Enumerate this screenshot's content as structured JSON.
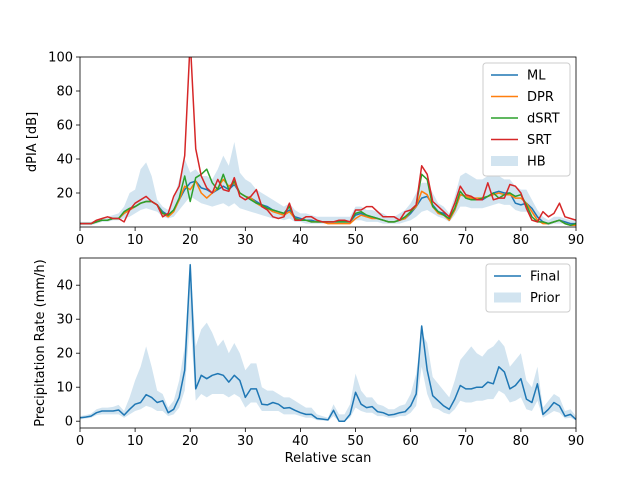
{
  "chart_data": [
    {
      "type": "line",
      "ylabel": "dPIA [dB]",
      "xlabel": "",
      "xlim": [
        0,
        90
      ],
      "ylim": [
        0,
        100
      ],
      "xticks": [
        "0",
        "10",
        "20",
        "30",
        "40",
        "50",
        "60",
        "70",
        "80",
        "90"
      ],
      "yticks": [
        "20",
        "40",
        "60",
        "80",
        "100"
      ],
      "legend_position": "top-right",
      "x": [
        0,
        1,
        2,
        3,
        4,
        5,
        6,
        7,
        8,
        9,
        10,
        11,
        12,
        13,
        14,
        15,
        16,
        17,
        18,
        19,
        20,
        21,
        22,
        23,
        24,
        25,
        26,
        27,
        28,
        29,
        30,
        31,
        32,
        33,
        34,
        35,
        36,
        37,
        38,
        39,
        40,
        41,
        42,
        43,
        44,
        45,
        46,
        47,
        48,
        49,
        50,
        51,
        52,
        53,
        54,
        55,
        56,
        57,
        58,
        59,
        60,
        61,
        62,
        63,
        64,
        65,
        66,
        67,
        68,
        69,
        70,
        71,
        72,
        73,
        74,
        75,
        76,
        77,
        78,
        79,
        80,
        81,
        82,
        83,
        84,
        85,
        86,
        87,
        88,
        89,
        90
      ],
      "series": [
        {
          "name": "ML",
          "color": "#1f77b4",
          "values": [
            2,
            2,
            2,
            3,
            4,
            4,
            5,
            5,
            8,
            10,
            12,
            14,
            15,
            15,
            13,
            9,
            7,
            10,
            16,
            22,
            26,
            27,
            23,
            22,
            20,
            22,
            24,
            22,
            25,
            20,
            18,
            17,
            15,
            13,
            12,
            10,
            9,
            8,
            10,
            6,
            5,
            4,
            4,
            3,
            3,
            3,
            3,
            3,
            3,
            3,
            7,
            8,
            6,
            6,
            5,
            4,
            3,
            3,
            4,
            5,
            8,
            12,
            17,
            18,
            13,
            9,
            8,
            4,
            10,
            19,
            18,
            17,
            16,
            16,
            18,
            20,
            21,
            20,
            20,
            14,
            13,
            14,
            11,
            6,
            3,
            2,
            3,
            4,
            3,
            2,
            2
          ]
        },
        {
          "name": "DPR",
          "color": "#ff7f0e",
          "values": [
            2,
            2,
            2,
            3,
            4,
            4,
            5,
            5,
            8,
            10,
            12,
            14,
            15,
            15,
            13,
            8,
            6,
            9,
            16,
            24,
            22,
            27,
            20,
            17,
            20,
            23,
            28,
            24,
            26,
            20,
            18,
            17,
            14,
            12,
            11,
            9,
            8,
            7,
            9,
            5,
            4,
            4,
            3,
            3,
            3,
            2,
            2,
            2,
            2,
            2,
            5,
            7,
            6,
            5,
            5,
            4,
            3,
            3,
            4,
            5,
            9,
            12,
            21,
            19,
            12,
            8,
            7,
            4,
            10,
            19,
            18,
            17,
            17,
            17,
            18,
            19,
            20,
            19,
            19,
            17,
            17,
            14,
            9,
            4,
            2,
            2,
            3,
            4,
            2,
            1,
            1
          ]
        },
        {
          "name": "dSRT",
          "color": "#2ca02c",
          "values": [
            2,
            2,
            2,
            3,
            4,
            4,
            5,
            5,
            9,
            11,
            12,
            14,
            15,
            15,
            13,
            8,
            7,
            10,
            17,
            30,
            15,
            29,
            31,
            34,
            26,
            22,
            31,
            22,
            27,
            20,
            18,
            16,
            14,
            13,
            11,
            10,
            9,
            8,
            12,
            5,
            4,
            4,
            3,
            3,
            3,
            3,
            3,
            3,
            3,
            3,
            8,
            9,
            7,
            6,
            5,
            4,
            3,
            3,
            4,
            6,
            9,
            13,
            31,
            28,
            12,
            9,
            7,
            5,
            11,
            21,
            17,
            16,
            16,
            17,
            18,
            20,
            17,
            19,
            20,
            18,
            19,
            13,
            6,
            3,
            3,
            2,
            3,
            4,
            2,
            1,
            2
          ]
        },
        {
          "name": "SRT",
          "color": "#d62728",
          "values": [
            2,
            2,
            2,
            4,
            5,
            6,
            5,
            5,
            3,
            10,
            14,
            16,
            18,
            15,
            13,
            6,
            8,
            18,
            24,
            42,
            110,
            46,
            30,
            23,
            20,
            28,
            22,
            21,
            29,
            18,
            16,
            18,
            22,
            12,
            10,
            6,
            5,
            6,
            14,
            4,
            4,
            6,
            6,
            4,
            3,
            3,
            3,
            4,
            4,
            3,
            10,
            10,
            12,
            12,
            9,
            6,
            6,
            6,
            4,
            9,
            10,
            13,
            36,
            31,
            15,
            12,
            9,
            6,
            14,
            24,
            19,
            18,
            16,
            16,
            26,
            16,
            17,
            17,
            25,
            24,
            20,
            11,
            4,
            3,
            9,
            6,
            8,
            14,
            6,
            5,
            4
          ]
        }
      ],
      "bands": [
        {
          "name": "HB",
          "color": "#1f77b4",
          "opacity": 0.2,
          "lower": [
            1,
            1,
            1,
            2,
            3,
            3,
            4,
            4,
            5,
            6,
            8,
            10,
            11,
            10,
            9,
            6,
            5,
            6,
            10,
            14,
            18,
            16,
            14,
            13,
            12,
            13,
            14,
            12,
            14,
            11,
            10,
            9,
            8,
            7,
            6,
            5,
            5,
            4,
            5,
            3,
            3,
            2,
            2,
            2,
            2,
            2,
            2,
            2,
            2,
            2,
            4,
            4,
            3,
            3,
            3,
            2,
            2,
            2,
            2,
            3,
            4,
            6,
            9,
            10,
            8,
            6,
            5,
            3,
            7,
            12,
            12,
            11,
            11,
            11,
            12,
            13,
            14,
            13,
            13,
            10,
            9,
            9,
            7,
            4,
            2,
            1,
            2,
            2,
            2,
            1,
            1
          ],
          "upper": [
            3,
            3,
            3,
            4,
            5,
            6,
            7,
            8,
            12,
            20,
            22,
            34,
            38,
            30,
            16,
            12,
            10,
            16,
            28,
            40,
            32,
            34,
            30,
            30,
            28,
            34,
            42,
            36,
            50,
            32,
            28,
            26,
            22,
            20,
            18,
            16,
            14,
            12,
            14,
            10,
            8,
            8,
            7,
            6,
            6,
            6,
            6,
            6,
            6,
            6,
            12,
            12,
            10,
            10,
            9,
            8,
            6,
            6,
            8,
            10,
            14,
            20,
            26,
            26,
            20,
            14,
            12,
            8,
            18,
            30,
            32,
            30,
            28,
            28,
            30,
            30,
            30,
            28,
            28,
            24,
            22,
            22,
            16,
            10,
            6,
            4,
            6,
            6,
            5,
            4,
            4
          ]
        }
      ]
    },
    {
      "type": "line",
      "ylabel": "Precipitation Rate (mm/h)",
      "xlabel": "Relative scan",
      "xlim": [
        0,
        90
      ],
      "ylim": [
        -2,
        48
      ],
      "xticks": [
        "0",
        "10",
        "20",
        "30",
        "40",
        "50",
        "60",
        "70",
        "80",
        "90"
      ],
      "yticks": [
        "0",
        "10",
        "20",
        "30",
        "40"
      ],
      "legend_position": "top-right",
      "x": [
        0,
        1,
        2,
        3,
        4,
        5,
        6,
        7,
        8,
        9,
        10,
        11,
        12,
        13,
        14,
        15,
        16,
        17,
        18,
        19,
        20,
        21,
        22,
        23,
        24,
        25,
        26,
        27,
        28,
        29,
        30,
        31,
        32,
        33,
        34,
        35,
        36,
        37,
        38,
        39,
        40,
        41,
        42,
        43,
        44,
        45,
        46,
        47,
        48,
        49,
        50,
        51,
        52,
        53,
        54,
        55,
        56,
        57,
        58,
        59,
        60,
        61,
        62,
        63,
        64,
        65,
        66,
        67,
        68,
        69,
        70,
        71,
        72,
        73,
        74,
        75,
        76,
        77,
        78,
        79,
        80,
        81,
        82,
        83,
        84,
        85,
        86,
        87,
        88,
        89,
        90
      ],
      "series": [
        {
          "name": "Final",
          "color": "#1f77b4",
          "values": [
            1,
            1.2,
            1.5,
            2.5,
            3,
            3,
            3,
            3.3,
            1.8,
            3.5,
            5,
            5.5,
            7.8,
            7,
            5.5,
            6,
            2.5,
            3.5,
            7,
            15,
            46,
            9.5,
            13.5,
            12.5,
            13.5,
            14,
            13.5,
            11.5,
            13.5,
            12,
            7,
            9.5,
            9.5,
            5,
            4.8,
            5.5,
            5,
            3.8,
            4,
            3.2,
            2.5,
            2,
            2,
            0.8,
            0.6,
            0.4,
            3.2,
            0,
            0,
            2,
            8.5,
            5,
            4,
            4.3,
            2.8,
            2.5,
            1.8,
            2,
            2.5,
            2.8,
            4.5,
            8,
            28,
            15,
            7.5,
            6,
            4.5,
            3.5,
            6.5,
            10.5,
            9.5,
            9.5,
            10,
            10,
            11.5,
            11,
            16,
            14.5,
            9.5,
            10.5,
            12.5,
            6.5,
            5.5,
            11,
            2,
            3.5,
            5.5,
            4.5,
            1.5,
            2,
            0.5
          ]
        }
      ],
      "bands": [
        {
          "name": "Prior",
          "color": "#1f77b4",
          "opacity": 0.2,
          "lower": [
            0.5,
            0.8,
            1,
            1.8,
            2,
            2,
            2,
            2,
            1,
            2,
            3,
            3.5,
            4.5,
            4,
            3,
            3,
            1.5,
            2,
            4,
            9,
            30,
            6,
            8,
            7,
            8,
            8,
            8,
            7,
            8,
            7,
            4,
            5.5,
            5.5,
            3,
            3,
            3,
            3,
            2,
            2,
            2,
            1.5,
            1,
            1,
            0.3,
            0.2,
            0.1,
            1.5,
            0,
            0,
            1,
            4,
            3,
            2.5,
            2.5,
            1.5,
            1.5,
            1,
            1,
            1.5,
            1.5,
            2.5,
            4.5,
            16,
            8,
            4,
            3.5,
            2.5,
            2,
            3.5,
            6,
            5.5,
            5.5,
            6,
            6,
            6.5,
            6.5,
            9,
            8,
            5.5,
            6,
            7,
            3.5,
            3,
            6,
            1,
            2,
            3,
            2.5,
            0.8,
            1,
            0.2
          ],
          "upper": [
            1.5,
            1.8,
            2.2,
            3.5,
            4,
            4,
            4.2,
            4.8,
            3,
            7,
            12,
            16,
            22,
            16,
            9,
            8,
            4,
            6,
            12,
            22,
            47,
            22,
            27,
            29,
            26,
            22,
            24,
            20,
            23,
            20,
            15,
            17,
            17,
            10,
            9,
            9,
            8,
            7,
            7,
            6,
            5,
            4,
            4,
            2,
            1.5,
            1,
            5,
            2,
            2,
            5,
            14,
            9,
            7,
            7,
            5,
            4.5,
            3.5,
            3.5,
            4.5,
            5,
            8,
            14,
            26,
            23,
            13,
            11,
            9,
            7,
            12,
            18,
            20,
            22,
            20,
            19,
            21,
            22,
            24,
            22,
            16,
            18,
            20,
            12,
            10,
            16,
            4,
            6,
            8,
            7,
            3,
            3.5,
            1.5
          ]
        }
      ]
    }
  ]
}
